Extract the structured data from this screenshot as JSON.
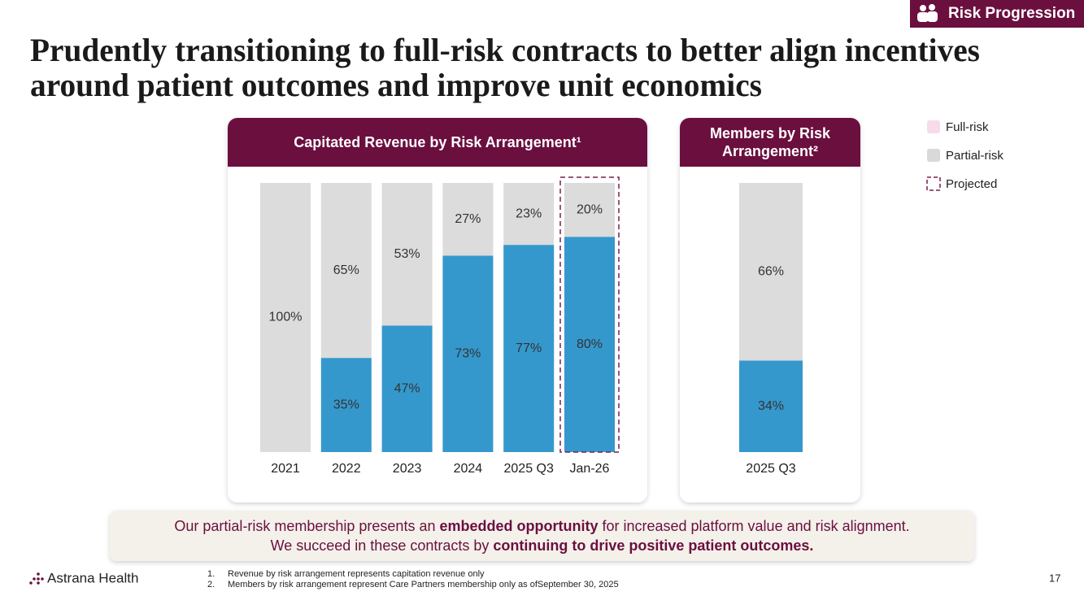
{
  "tag": "Risk Progression",
  "title_lines": [
    "Prudently transitioning to full-risk contracts to better align incentives",
    "around patient outcomes and improve unit economics"
  ],
  "chart_data": [
    {
      "type": "stacked-bar",
      "title": "Capitated Revenue by Risk Arrangement¹",
      "categories": [
        "2021",
        "2022",
        "2023",
        "2024",
        "2025 Q3",
        "Jan-26"
      ],
      "series": [
        {
          "name": "Full-risk",
          "color": "#3598cd",
          "legend_color": "#f7dbe9",
          "values": [
            0,
            35,
            47,
            73,
            77,
            80
          ],
          "value_labels": [
            null,
            "35%",
            "47%",
            "73%",
            "77%",
            "80%"
          ]
        },
        {
          "name": "Partial-risk",
          "color": "#dcdcdc",
          "legend_color": "#d9d9d9",
          "values": [
            100,
            65,
            53,
            27,
            23,
            20
          ],
          "value_labels": [
            "100%",
            "65%",
            "53%",
            "27%",
            "23%",
            "20%"
          ]
        }
      ],
      "projected": [
        false,
        false,
        false,
        false,
        false,
        true
      ],
      "projected_label": "Projected",
      "ylim": [
        0,
        100
      ]
    },
    {
      "type": "stacked-bar",
      "title": "Members by Risk Arrangement²",
      "categories": [
        "2025 Q3"
      ],
      "series": [
        {
          "color": "#3598cd",
          "values": [
            34
          ],
          "value_labels": [
            "34%"
          ]
        },
        {
          "color": "#dcdcdc",
          "values": [
            66
          ],
          "value_labels": [
            "66%"
          ]
        }
      ],
      "ylim": [
        0,
        100
      ]
    }
  ],
  "callout": {
    "lines": [
      [
        {
          "text": "Our partial-risk membership presents an ",
          "bold": false
        },
        {
          "text": "embedded opportunity",
          "bold": true
        },
        {
          "text": " for increased platform value and risk alignment.",
          "bold": false
        }
      ],
      [
        {
          "text": "We succeed in these contracts by ",
          "bold": false
        },
        {
          "text": "continuing to drive positive patient outcomes.",
          "bold": true
        }
      ]
    ]
  },
  "logo": "Astrana Health",
  "footnotes": [
    {
      "marker": "1.",
      "text": "Revenue by risk arrangement represents capitation revenue only"
    },
    {
      "marker": "2.",
      "text": "Members by risk arrangement represent Care Partners membership only as ofSeptember 30, 2025"
    }
  ],
  "page_number": "17"
}
